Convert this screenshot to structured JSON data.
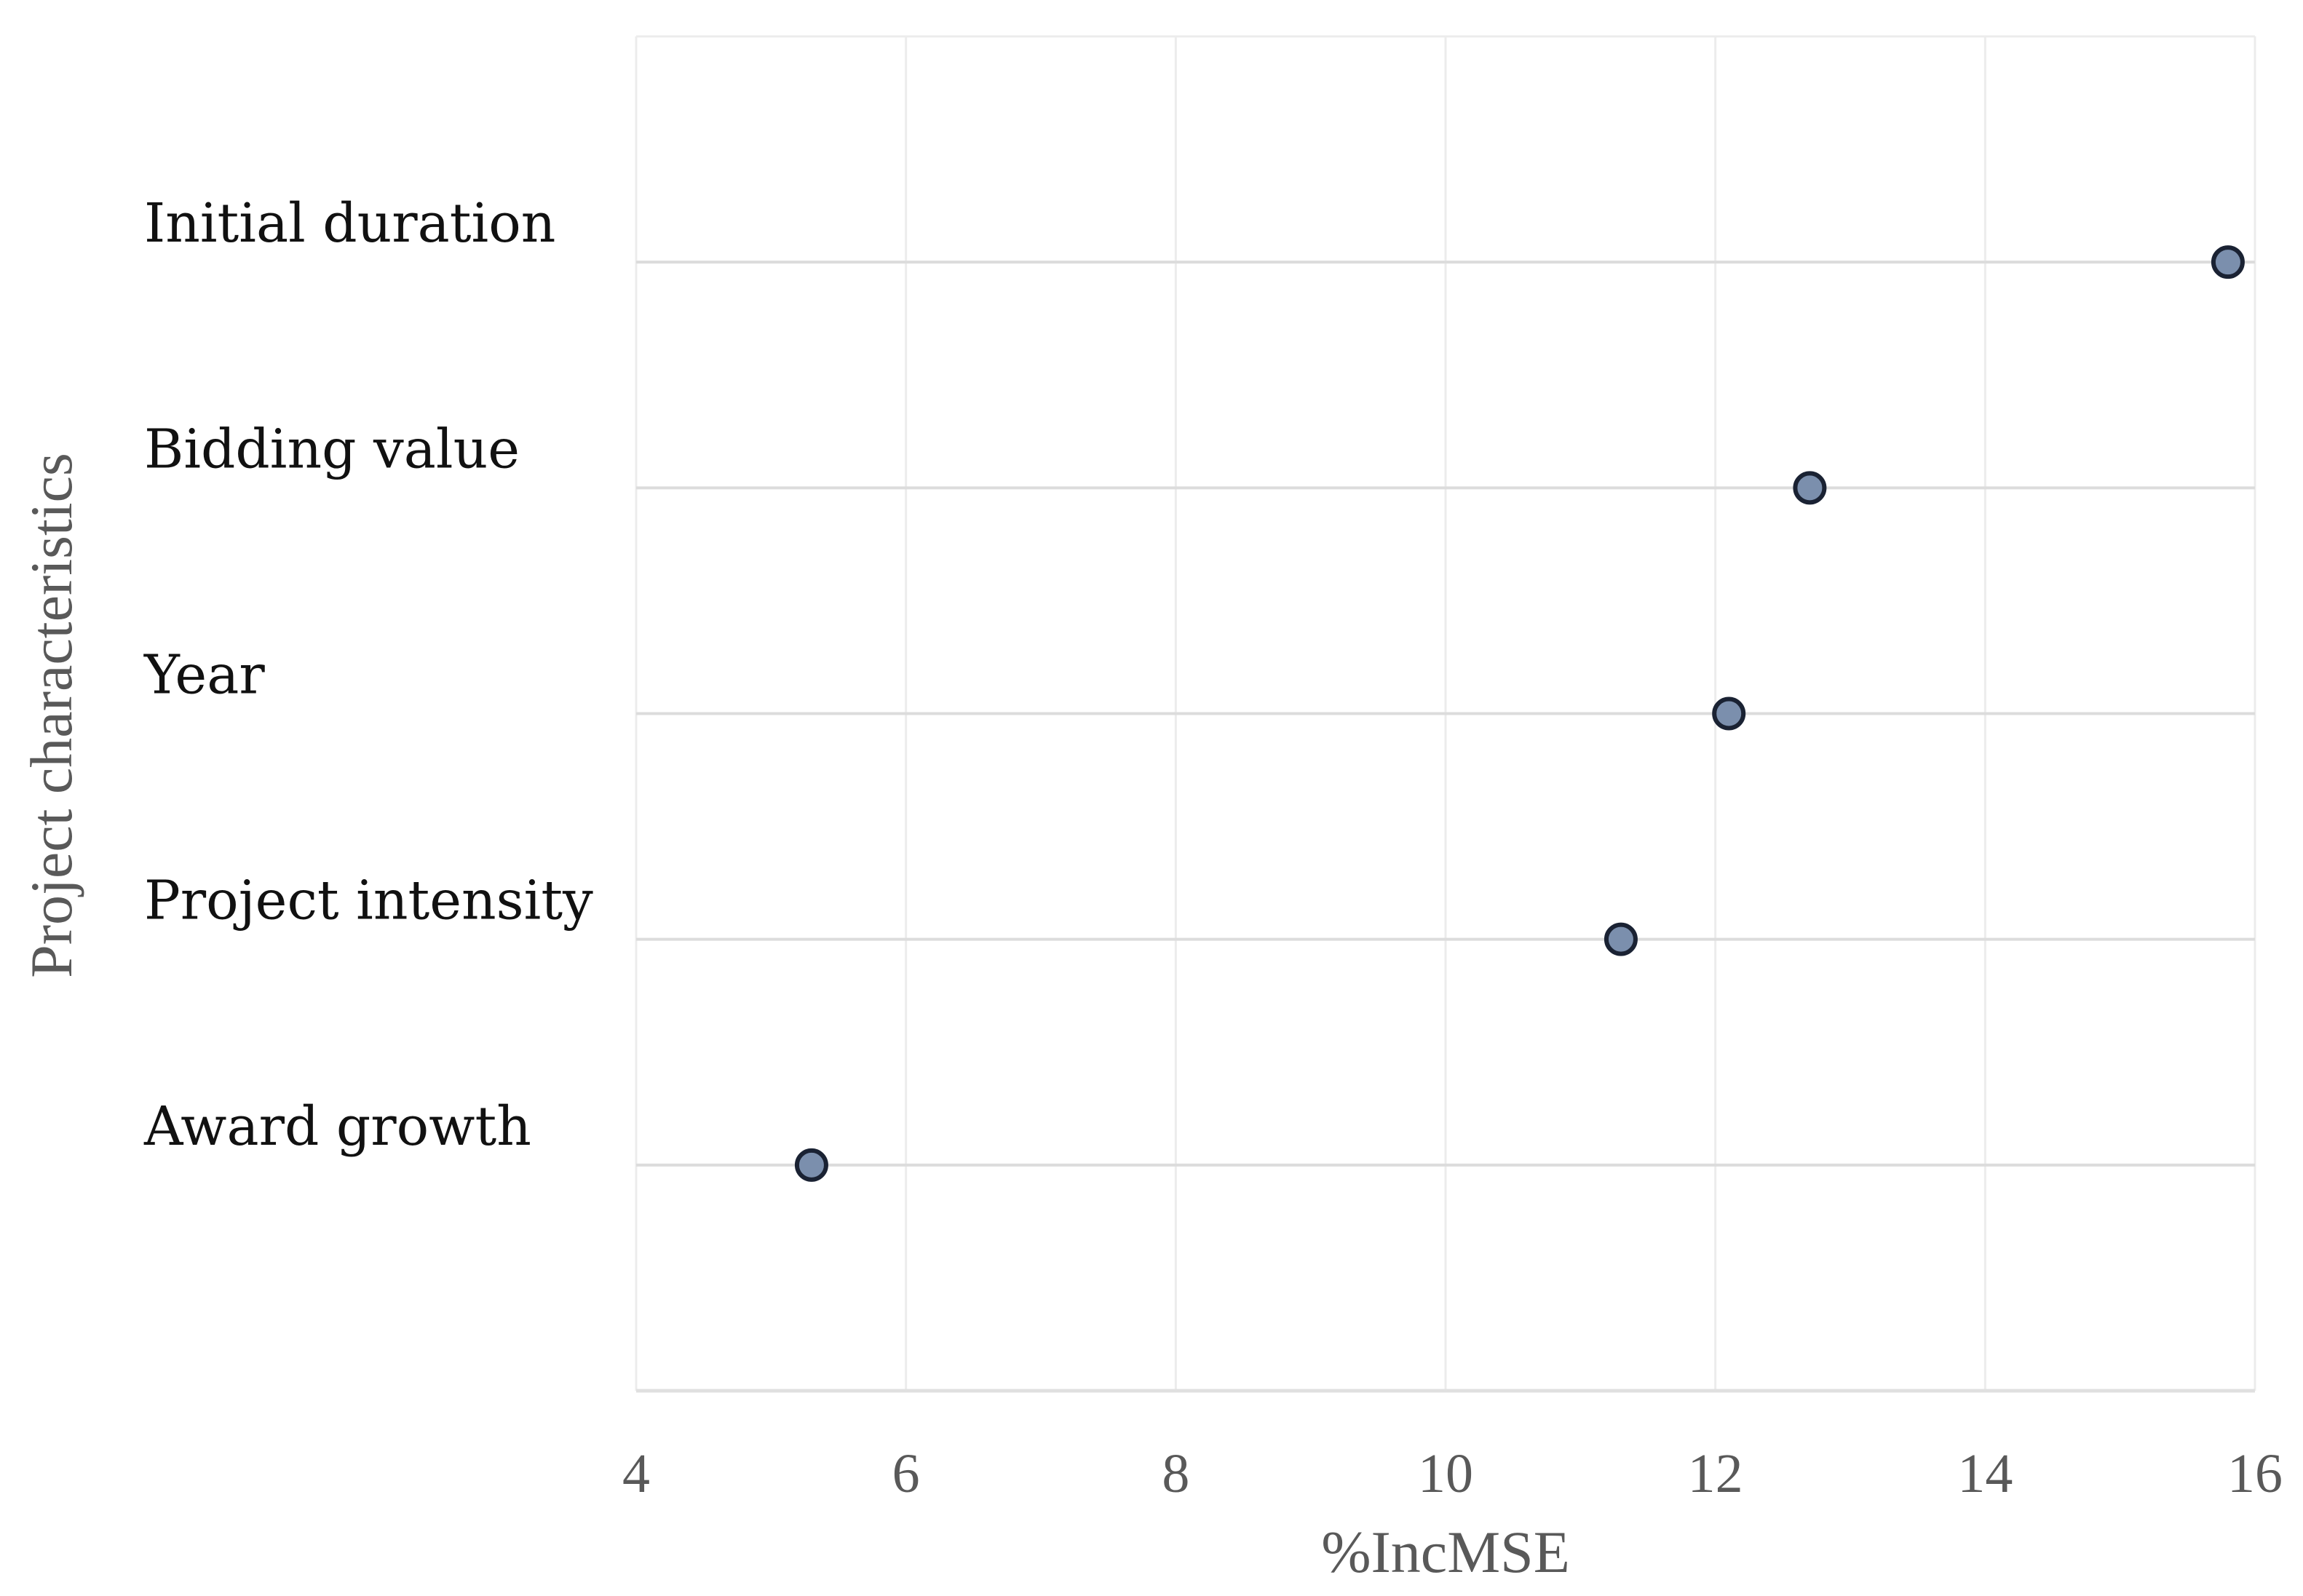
{
  "chart_data": {
    "type": "scatter",
    "categories": [
      "Initial duration",
      "Bidding value",
      "Year",
      "Project intensity",
      "Award growth"
    ],
    "values": [
      15.8,
      12.7,
      12.1,
      11.3,
      5.3
    ],
    "xlabel": "%IncMSE",
    "ylabel": "Project characteristics",
    "xlim": [
      4,
      16
    ],
    "xticks": [
      "4",
      "6",
      "8",
      "10",
      "12",
      "14",
      "16"
    ],
    "grid": true,
    "marker_fill": "#7b8fad",
    "marker_edge": "#1a2233"
  }
}
